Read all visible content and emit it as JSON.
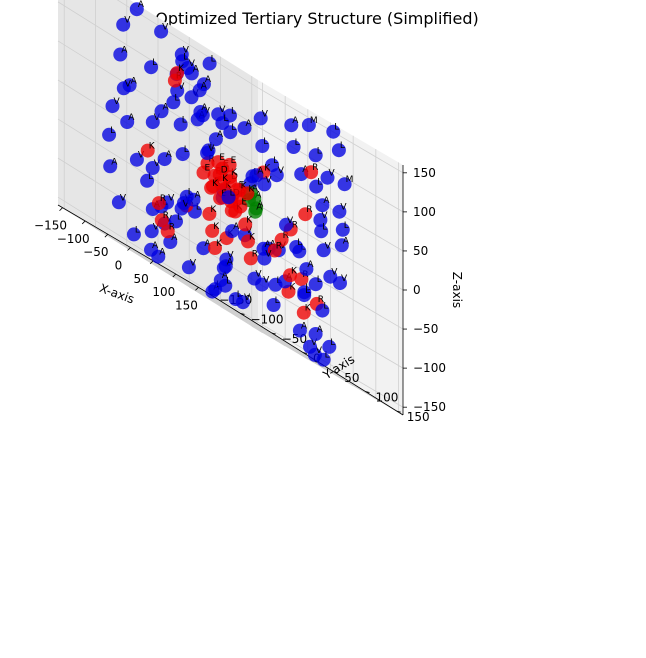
{
  "chart_data": {
    "type": "scatter",
    "title": "Optimized Tertiary Structure (Simplified)",
    "xlabel": "X-axis",
    "ylabel": "Y-axis",
    "zlabel": "Z-axis",
    "xlim": [
      -160,
      160
    ],
    "ylim": [
      -160,
      160
    ],
    "zlim": [
      -160,
      160
    ],
    "xticks": [
      -150,
      -100,
      -50,
      0,
      50,
      100,
      150
    ],
    "yticks": [
      -150,
      -100,
      -50,
      0,
      50,
      100,
      150
    ],
    "zticks": [
      -150,
      -100,
      -50,
      0,
      50,
      100,
      150
    ],
    "grid": true,
    "colors": {
      "hydrophobic": "#0000e0",
      "charged": "#ee0000",
      "core": "#008000"
    },
    "series": [
      {
        "color": "#0000e0",
        "points": [
          [
            -140,
            0,
            -70,
            "V"
          ],
          [
            -130,
            -30,
            -90,
            "A"
          ],
          [
            -120,
            30,
            -60,
            "L"
          ],
          [
            -110,
            -70,
            -40,
            "V"
          ],
          [
            -100,
            60,
            -20,
            "L"
          ],
          [
            -90,
            -100,
            0,
            "A"
          ],
          [
            -80,
            90,
            20,
            "L"
          ],
          [
            -70,
            -120,
            40,
            "V"
          ],
          [
            -60,
            110,
            60,
            "L"
          ],
          [
            -50,
            -140,
            80,
            "A"
          ],
          [
            -40,
            130,
            100,
            "L"
          ],
          [
            -30,
            -150,
            120,
            "V"
          ],
          [
            -20,
            140,
            140,
            "M"
          ],
          [
            0,
            -150,
            150,
            "A"
          ],
          [
            20,
            150,
            150,
            "L"
          ],
          [
            40,
            -140,
            140,
            "V"
          ],
          [
            60,
            130,
            130,
            "L"
          ],
          [
            80,
            -120,
            110,
            "A"
          ],
          [
            100,
            110,
            90,
            "M"
          ],
          [
            120,
            -100,
            70,
            "L"
          ],
          [
            130,
            80,
            50,
            "V"
          ],
          [
            140,
            -60,
            30,
            "A"
          ],
          [
            145,
            40,
            10,
            "L"
          ],
          [
            150,
            -20,
            -10,
            "V"
          ],
          [
            145,
            0,
            -30,
            "L"
          ],
          [
            140,
            20,
            -50,
            "A"
          ],
          [
            130,
            -40,
            -70,
            "V"
          ],
          [
            120,
            60,
            -90,
            "L"
          ],
          [
            100,
            -80,
            -110,
            "A"
          ],
          [
            80,
            100,
            -130,
            "L"
          ],
          [
            60,
            -110,
            -140,
            "V"
          ],
          [
            40,
            120,
            -150,
            "L"
          ],
          [
            20,
            -130,
            -150,
            "A"
          ],
          [
            0,
            135,
            -150,
            "V"
          ],
          [
            -20,
            -140,
            -140,
            "L"
          ],
          [
            -40,
            140,
            -130,
            "A"
          ],
          [
            -60,
            -135,
            -110,
            "V"
          ],
          [
            -80,
            130,
            -90,
            "L"
          ],
          [
            -100,
            -120,
            -70,
            "A"
          ],
          [
            -120,
            110,
            -50,
            "V"
          ],
          [
            -130,
            -100,
            -30,
            "L"
          ],
          [
            -140,
            90,
            -10,
            "A"
          ],
          [
            -150,
            -80,
            10,
            "V"
          ],
          [
            -145,
            70,
            30,
            "L"
          ],
          [
            -140,
            -60,
            50,
            "A"
          ],
          [
            -130,
            50,
            70,
            "V"
          ],
          [
            -120,
            -40,
            90,
            "L"
          ],
          [
            -100,
            30,
            110,
            "A"
          ],
          [
            -80,
            -20,
            130,
            "V"
          ],
          [
            -60,
            10,
            140,
            "L"
          ],
          [
            -40,
            0,
            -150,
            "A"
          ],
          [
            -20,
            -10,
            -145,
            "L"
          ],
          [
            0,
            20,
            -140,
            "V"
          ],
          [
            20,
            -30,
            -130,
            "A"
          ],
          [
            40,
            40,
            -120,
            "L"
          ],
          [
            60,
            -50,
            -100,
            "V"
          ],
          [
            80,
            60,
            -80,
            "L"
          ],
          [
            100,
            -70,
            -60,
            "A"
          ],
          [
            110,
            80,
            -40,
            "V"
          ],
          [
            120,
            -90,
            -20,
            "L"
          ],
          [
            -90,
            -40,
            -100,
            "V"
          ],
          [
            -70,
            40,
            -110,
            "L"
          ],
          [
            -50,
            -60,
            -120,
            "A"
          ],
          [
            -30,
            60,
            -100,
            "V"
          ],
          [
            -10,
            -80,
            -90,
            "L"
          ],
          [
            10,
            80,
            -80,
            "A"
          ],
          [
            30,
            -100,
            -70,
            "V"
          ],
          [
            50,
            100,
            -60,
            "L"
          ],
          [
            70,
            -110,
            -50,
            "A"
          ],
          [
            90,
            110,
            -40,
            "V"
          ],
          [
            -110,
            0,
            40,
            "L"
          ],
          [
            -100,
            20,
            60,
            "A"
          ],
          [
            -90,
            -20,
            80,
            "V"
          ],
          [
            -70,
            50,
            90,
            "L"
          ],
          [
            -50,
            -50,
            100,
            "A"
          ],
          [
            -30,
            70,
            110,
            "V"
          ],
          [
            -10,
            -70,
            120,
            "L"
          ],
          [
            10,
            90,
            125,
            "A"
          ],
          [
            30,
            -90,
            115,
            "V"
          ],
          [
            50,
            100,
            105,
            "L"
          ],
          [
            70,
            -100,
            95,
            "A"
          ],
          [
            90,
            90,
            85,
            "V"
          ],
          [
            110,
            -80,
            65,
            "L"
          ],
          [
            120,
            60,
            45,
            "A"
          ],
          [
            130,
            -40,
            25,
            "V"
          ],
          [
            -60,
            -90,
            -60,
            "L"
          ],
          [
            -40,
            90,
            -50,
            "A"
          ],
          [
            -20,
            -110,
            -40,
            "V"
          ],
          [
            0,
            110,
            -30,
            "L"
          ],
          [
            20,
            -120,
            -20,
            "A"
          ],
          [
            40,
            120,
            -10,
            "V"
          ],
          [
            60,
            -120,
            0,
            "L"
          ],
          [
            80,
            120,
            10,
            "A"
          ],
          [
            100,
            -110,
            20,
            "V"
          ],
          [
            110,
            100,
            30,
            "L"
          ],
          [
            -75,
            -70,
            20,
            "V"
          ],
          [
            -55,
            75,
            30,
            "L"
          ],
          [
            -35,
            -85,
            40,
            "A"
          ],
          [
            -15,
            85,
            50,
            "V"
          ],
          [
            5,
            -95,
            60,
            "L"
          ],
          [
            25,
            95,
            70,
            "A"
          ],
          [
            45,
            -95,
            80,
            "V"
          ],
          [
            65,
            90,
            65,
            "L"
          ],
          [
            85,
            -85,
            45,
            "A"
          ],
          [
            95,
            75,
            25,
            "V"
          ],
          [
            -125,
            -20,
            -80,
            "L"
          ],
          [
            -115,
            40,
            -100,
            "A"
          ],
          [
            -105,
            -50,
            -120,
            "V"
          ],
          [
            -85,
            70,
            -140,
            "L"
          ],
          [
            -65,
            -80,
            -145,
            "A"
          ],
          [
            65,
            80,
            -145,
            "V"
          ],
          [
            85,
            -70,
            -135,
            "L"
          ],
          [
            105,
            60,
            -125,
            "A"
          ],
          [
            125,
            -40,
            -105,
            "V"
          ],
          [
            135,
            20,
            -85,
            "L"
          ],
          [
            -20,
            -60,
            -60,
            "V"
          ],
          [
            -10,
            60,
            -55,
            "A"
          ],
          [
            0,
            -70,
            -50,
            "L"
          ],
          [
            10,
            70,
            -45,
            "V"
          ],
          [
            -25,
            -30,
            70,
            "A"
          ],
          [
            15,
            40,
            75,
            "L"
          ],
          [
            35,
            -45,
            80,
            "V"
          ],
          [
            -45,
            55,
            85,
            "A"
          ]
        ]
      },
      {
        "color": "#ee0000",
        "points": [
          [
            -30,
            -15,
            10,
            "R"
          ],
          [
            -25,
            5,
            15,
            "E"
          ],
          [
            -20,
            -5,
            20,
            "E"
          ],
          [
            -15,
            10,
            10,
            "K"
          ],
          [
            -10,
            -10,
            5,
            "D"
          ],
          [
            -5,
            15,
            0,
            "E"
          ],
          [
            0,
            -15,
            -5,
            "K"
          ],
          [
            5,
            10,
            -10,
            "R"
          ],
          [
            10,
            -5,
            -15,
            "D"
          ],
          [
            15,
            5,
            -20,
            "E"
          ],
          [
            -28,
            10,
            -10,
            "K"
          ],
          [
            -22,
            -12,
            -15,
            "R"
          ],
          [
            -18,
            14,
            -20,
            "D"
          ],
          [
            -12,
            -8,
            -25,
            "E"
          ],
          [
            -6,
            12,
            -30,
            "K"
          ],
          [
            -35,
            0,
            0,
            "R"
          ],
          [
            -32,
            -20,
            -5,
            "E"
          ],
          [
            -26,
            18,
            5,
            "D"
          ],
          [
            20,
            0,
            0,
            "K"
          ],
          [
            -2,
            0,
            25,
            "E"
          ],
          [
            60,
            -20,
            -40,
            "K"
          ],
          [
            70,
            20,
            -50,
            "R"
          ],
          [
            80,
            -30,
            -60,
            "K"
          ],
          [
            90,
            30,
            -70,
            "K"
          ],
          [
            100,
            -40,
            -80,
            "R"
          ],
          [
            50,
            -70,
            -55,
            "K"
          ],
          [
            60,
            70,
            -65,
            "R"
          ],
          [
            70,
            -80,
            -75,
            "K"
          ],
          [
            80,
            80,
            -85,
            "R"
          ],
          [
            90,
            -90,
            -95,
            "K"
          ],
          [
            -20,
            -100,
            -80,
            "R"
          ],
          [
            -10,
            100,
            -90,
            "K"
          ],
          [
            0,
            -110,
            -100,
            "R"
          ],
          [
            10,
            110,
            -105,
            "K"
          ],
          [
            20,
            -115,
            -110,
            "R"
          ],
          [
            -100,
            -60,
            -20,
            "K"
          ],
          [
            -80,
            60,
            -30,
            "R"
          ],
          [
            40,
            100,
            80,
            "R"
          ],
          [
            20,
            -100,
            100,
            "K"
          ],
          [
            -40,
            -60,
            90,
            "R"
          ],
          [
            100,
            -20,
            40,
            "K"
          ],
          [
            110,
            40,
            20,
            "R"
          ],
          [
            120,
            -60,
            0,
            "K"
          ],
          [
            -70,
            -20,
            -60,
            "R"
          ],
          [
            -50,
            30,
            -70,
            "K"
          ],
          [
            30,
            60,
            -30,
            "R"
          ],
          [
            40,
            -60,
            -20,
            "K"
          ],
          [
            50,
            60,
            -10,
            "R"
          ]
        ]
      },
      {
        "color": "#008000",
        "points": [
          [
            20,
            15,
            -5,
            "A"
          ],
          [
            25,
            20,
            0,
            "A"
          ],
          [
            28,
            12,
            5,
            "A"
          ],
          [
            22,
            25,
            -10,
            "A"
          ],
          [
            30,
            18,
            -15,
            "A"
          ]
        ]
      }
    ]
  }
}
